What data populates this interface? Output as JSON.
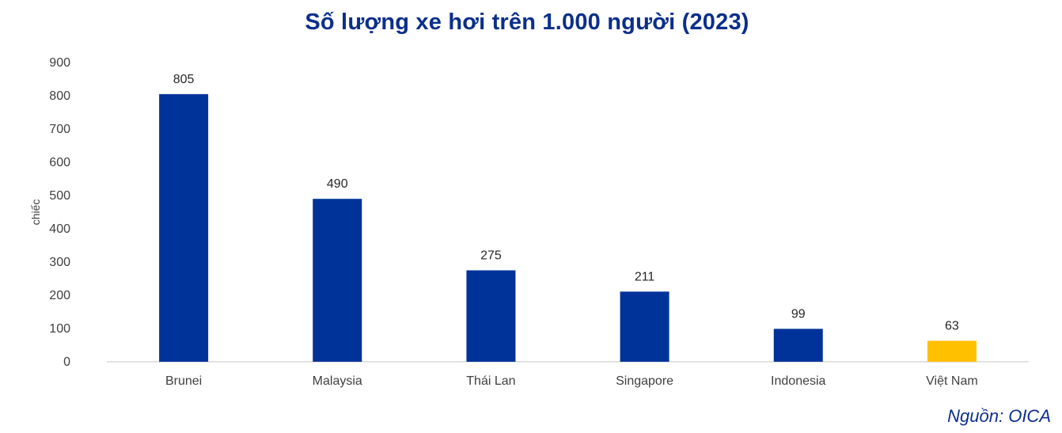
{
  "chart_data": {
    "type": "bar",
    "title": "Số lượng xe hơi trên 1.000 người (2023)",
    "xlabel": "",
    "ylabel": "chiếc",
    "categories": [
      "Brunei",
      "Malaysia",
      "Thái Lan",
      "Singapore",
      "Indonesia",
      "Việt Nam"
    ],
    "values": [
      805,
      490,
      275,
      211,
      99,
      63
    ],
    "data_labels": [
      "805",
      "490",
      "275",
      "211",
      "99",
      "63"
    ],
    "ylim": [
      0,
      900
    ],
    "yticks": [
      "0",
      "100",
      "200",
      "300",
      "400",
      "500",
      "600",
      "700",
      "800",
      "900"
    ],
    "grid": false,
    "legend": "none",
    "colors": {
      "default_bar": "#00339a",
      "highlight_bar": "#ffc000",
      "highlight_category": "Việt Nam",
      "title": "#0b2f8a",
      "axis_line": "#d9d9d9"
    }
  },
  "source": "Nguồn: OICA"
}
